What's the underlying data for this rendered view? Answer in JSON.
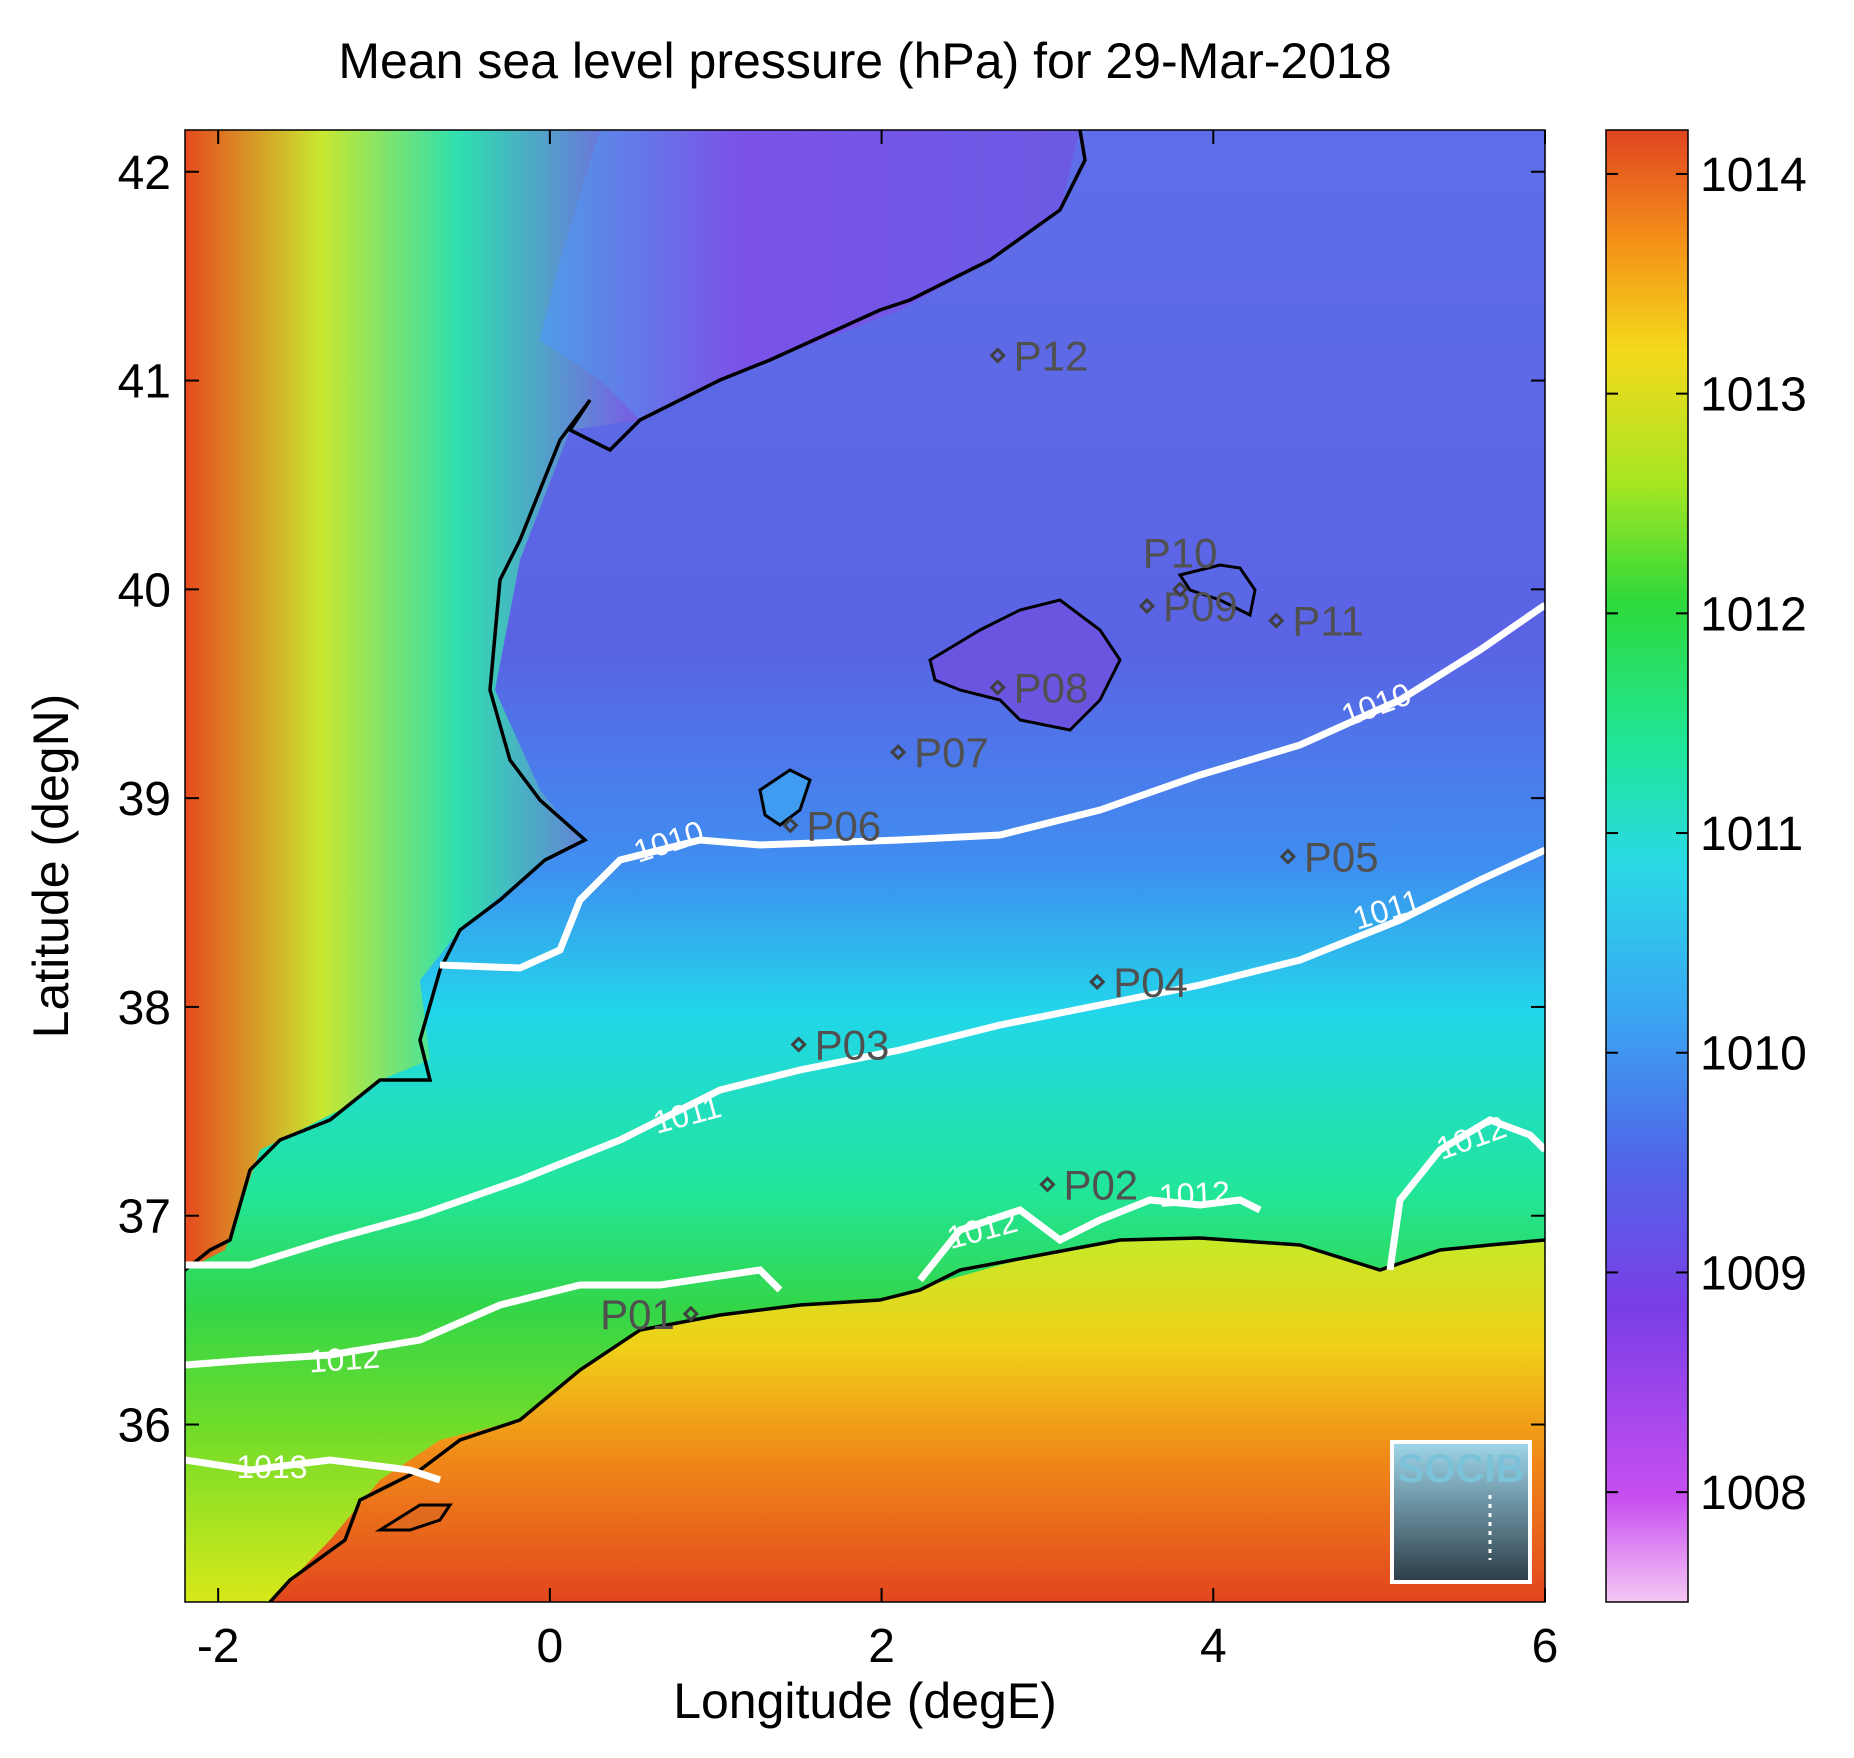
{
  "title": "Mean sea level pressure (hPa) for 29-Mar-2018",
  "xlabel": "Longitude (degE)",
  "ylabel": "Latitude (degN)",
  "x_ticks": [
    "-2",
    "0",
    "2",
    "4",
    "6"
  ],
  "y_ticks": [
    "42",
    "41",
    "40",
    "39",
    "38",
    "37",
    "36"
  ],
  "colorbar": {
    "ticks": [
      "1014",
      "1013",
      "1012",
      "1011",
      "1010",
      "1009",
      "1008"
    ],
    "range": [
      1007.5,
      1014.2
    ]
  },
  "stations": [
    {
      "label": "P01",
      "lon": 0.85,
      "lat": 36.53
    },
    {
      "label": "P02",
      "lon": 3.0,
      "lat": 37.15
    },
    {
      "label": "P03",
      "lon": 1.5,
      "lat": 37.82
    },
    {
      "label": "P04",
      "lon": 3.3,
      "lat": 38.12
    },
    {
      "label": "P05",
      "lon": 4.45,
      "lat": 38.72
    },
    {
      "label": "P06",
      "lon": 1.45,
      "lat": 38.87
    },
    {
      "label": "P07",
      "lon": 2.1,
      "lat": 39.22
    },
    {
      "label": "P08",
      "lon": 2.7,
      "lat": 39.53
    },
    {
      "label": "P09",
      "lon": 3.6,
      "lat": 39.92
    },
    {
      "label": "P10",
      "lon": 3.8,
      "lat": 40.0
    },
    {
      "label": "P11",
      "lon": 4.38,
      "lat": 39.85
    },
    {
      "label": "P12",
      "lon": 2.7,
      "lat": 41.12
    }
  ],
  "contour_labels": [
    "1010",
    "1010",
    "1011",
    "1011",
    "1012",
    "1012",
    "1012",
    "1012",
    "1013"
  ],
  "logo": "SOCIB",
  "chart_data": {
    "type": "heatmap",
    "title": "Mean sea level pressure (hPa) for 29-Mar-2018",
    "xlabel": "Longitude (degE)",
    "ylabel": "Latitude (degN)",
    "xlim": [
      -2.2,
      6
    ],
    "ylim": [
      35.15,
      42.2
    ],
    "colorbar_range": [
      1007.5,
      1014.2
    ],
    "colorbar_ticks": [
      1008,
      1009,
      1010,
      1011,
      1012,
      1013,
      1014
    ],
    "contour_levels": [
      1010,
      1011,
      1012,
      1013
    ],
    "grid": false
  }
}
